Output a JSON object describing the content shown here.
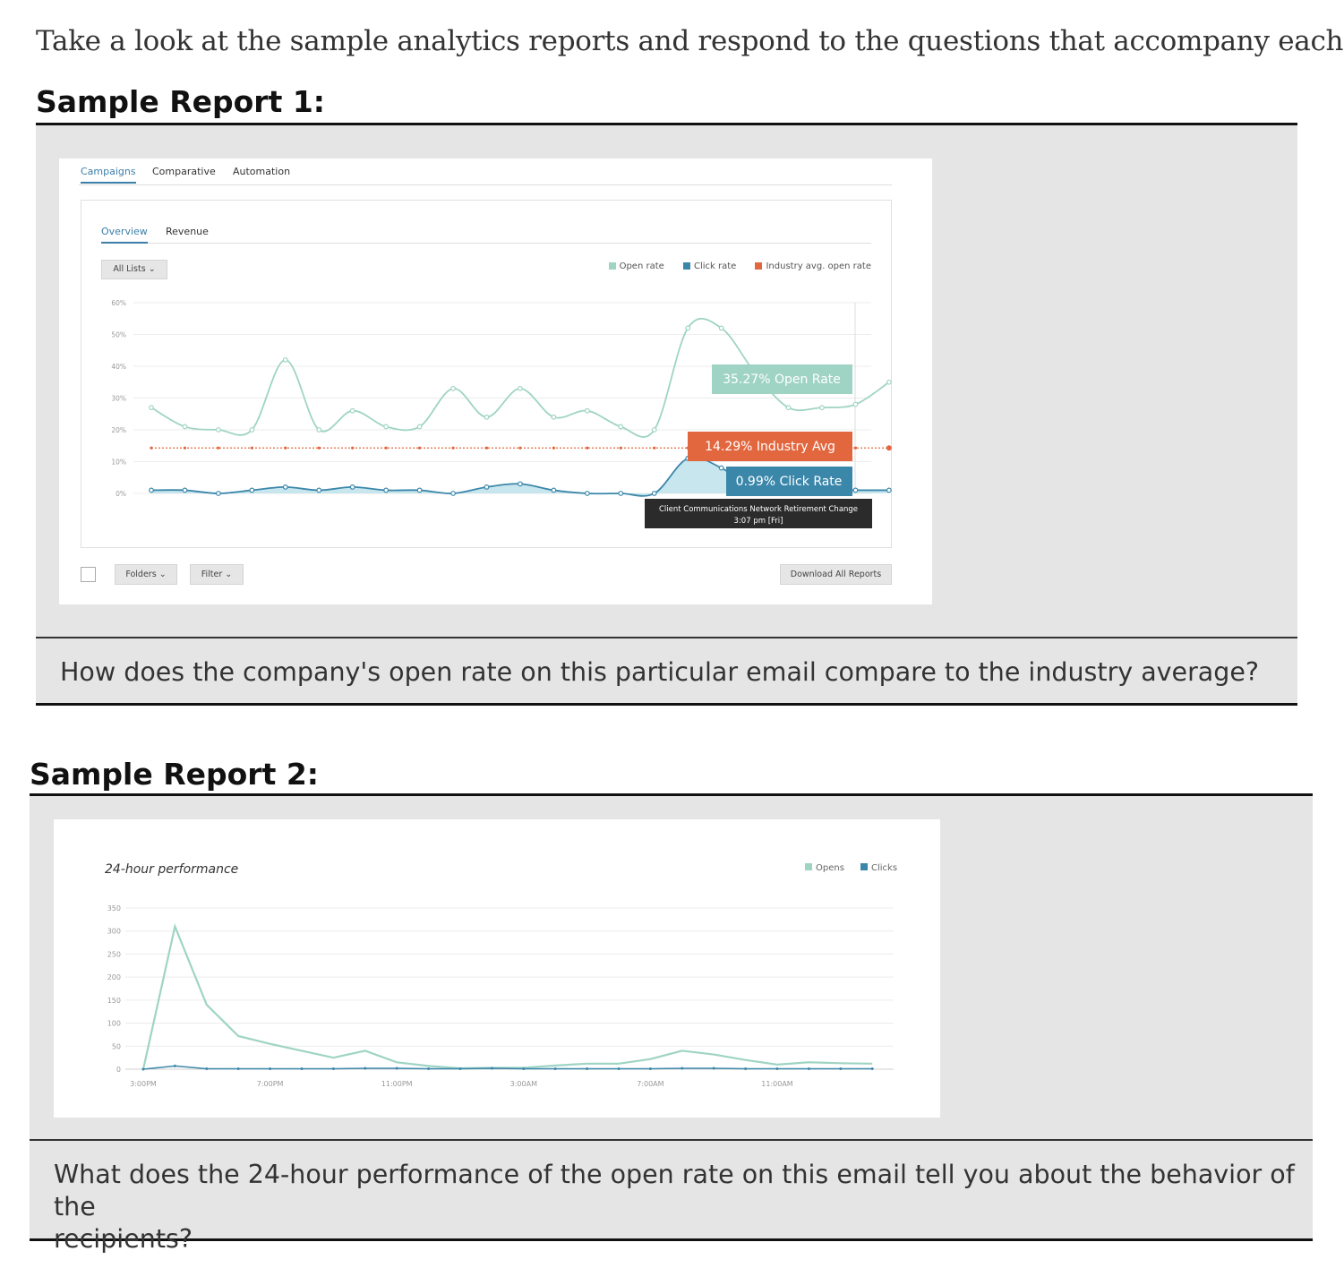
{
  "intro": "Take a look at the sample analytics reports and respond to the questions that accompany each one.",
  "report1": {
    "heading": "Sample Report 1:",
    "top_tabs": [
      {
        "label": "Campaigns",
        "active": true
      },
      {
        "label": "Comparative",
        "active": false
      },
      {
        "label": "Automation",
        "active": false
      }
    ],
    "sub_tabs": [
      {
        "label": "Overview",
        "active": true
      },
      {
        "label": "Revenue",
        "active": false
      }
    ],
    "lists_dropdown": "All Lists",
    "folders_button": "Folders",
    "filter_button": "Filter",
    "download_button": "Download All Reports",
    "callouts": {
      "open": "35.27% Open Rate",
      "industry": "14.29% Industry Avg",
      "click": "0.99% Click Rate"
    },
    "tooltip": {
      "line1": "Client Communications Network Retirement Change",
      "line2": "3:07 pm [Fri]"
    },
    "question": "How does the company's open rate on this particular email compare to the industry average?"
  },
  "report2": {
    "heading": "Sample Report 2:",
    "question_line1": "What does the 24-hour performance of the open rate on this email tell you about the behavior of the",
    "question_line2": "recipients?"
  },
  "colors": {
    "open": "#9fd4c4",
    "open_fill": "#b5dde7",
    "click": "#3b87aa",
    "industry": "#e2673e",
    "tooltip_bg": "#2b2b2b",
    "accent": "#3b7fa8"
  },
  "chart_data": [
    {
      "type": "line",
      "legend_position": "top-right",
      "grid": true,
      "ylim": [
        0,
        60
      ],
      "y_ticks": [
        "0%",
        "10%",
        "20%",
        "30%",
        "40%",
        "50%",
        "60%"
      ],
      "series": [
        {
          "name": "Open rate",
          "values": [
            27,
            21,
            20,
            20,
            42,
            20,
            26,
            21,
            21,
            33,
            24,
            33,
            24,
            26,
            21,
            20,
            52,
            52,
            38,
            27,
            27,
            28,
            35
          ]
        },
        {
          "name": "Click rate",
          "values": [
            1,
            1,
            0,
            1,
            2,
            1,
            2,
            1,
            1,
            0,
            2,
            3,
            1,
            0,
            0,
            0,
            11,
            8,
            1,
            1,
            1,
            1,
            1
          ]
        },
        {
          "name": "Industry avg. open rate",
          "values": [
            14.29,
            14.29,
            14.29,
            14.29,
            14.29,
            14.29,
            14.29,
            14.29,
            14.29,
            14.29,
            14.29,
            14.29,
            14.29,
            14.29,
            14.29,
            14.29,
            14.29,
            14.29,
            14.29,
            14.29,
            14.29,
            14.29,
            14.29
          ]
        }
      ]
    },
    {
      "type": "line",
      "title": "24-hour performance",
      "legend_position": "top-right",
      "grid": true,
      "ylim": [
        0,
        350
      ],
      "y_ticks": [
        "0",
        "50",
        "100",
        "150",
        "200",
        "250",
        "300",
        "350"
      ],
      "x_ticks": [
        {
          "index": 0,
          "label": "3:00PM"
        },
        {
          "index": 4,
          "label": "7:00PM"
        },
        {
          "index": 8,
          "label": "11:00PM"
        },
        {
          "index": 12,
          "label": "3:00AM"
        },
        {
          "index": 16,
          "label": "7:00AM"
        },
        {
          "index": 20,
          "label": "11:00AM"
        }
      ],
      "series": [
        {
          "name": "Opens",
          "values": [
            0,
            310,
            140,
            72,
            55,
            40,
            25,
            40,
            15,
            7,
            2,
            3,
            3,
            8,
            12,
            12,
            22,
            40,
            32,
            20,
            10,
            15,
            13,
            12
          ]
        },
        {
          "name": "Clicks",
          "values": [
            0,
            7,
            1,
            1,
            1,
            1,
            1,
            2,
            2,
            1,
            1,
            2,
            1,
            1,
            1,
            1,
            1,
            2,
            2,
            1,
            1,
            1,
            1,
            1
          ]
        }
      ]
    }
  ]
}
